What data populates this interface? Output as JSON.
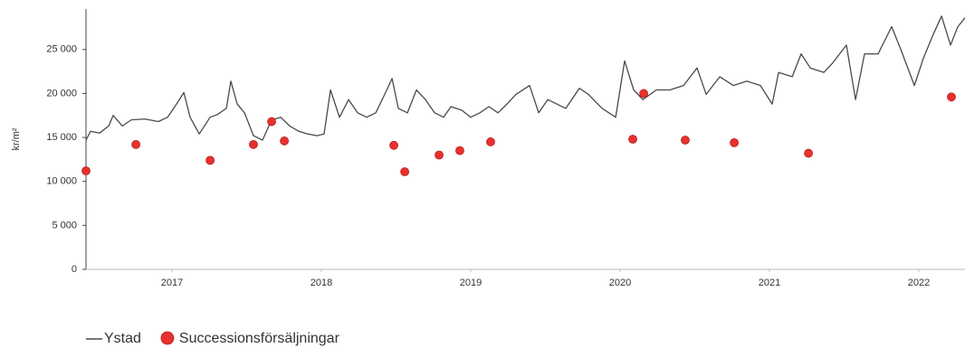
{
  "chart_data": {
    "type": "line",
    "ylabel": "kr/m²",
    "xlim": [
      2016.424,
      2022.309
    ],
    "xticks": [
      2017,
      2018,
      2019,
      2020,
      2021,
      2022
    ],
    "ylim": [
      0,
      29600
    ],
    "yticks": [
      0,
      {
        "value": 5000,
        "label": "5 000"
      },
      {
        "value": 10000,
        "label": "10 000"
      },
      {
        "value": 15000,
        "label": "15 000"
      },
      {
        "value": 20000,
        "label": "20 000"
      },
      {
        "value": 25000,
        "label": "25 000"
      }
    ],
    "grid": false,
    "series": [
      {
        "name": "Ystad",
        "type": "line",
        "color": "#4a4a4a",
        "x": [
          2016.424,
          2016.455,
          2016.515,
          2016.576,
          2016.606,
          2016.667,
          2016.727,
          2016.818,
          2016.909,
          2016.97,
          2017.03,
          2017.079,
          2017.121,
          2017.182,
          2017.255,
          2017.303,
          2017.364,
          2017.394,
          2017.436,
          2017.485,
          2017.545,
          2017.606,
          2017.667,
          2017.727,
          2017.788,
          2017.848,
          2017.909,
          2017.97,
          2018.018,
          2018.061,
          2018.121,
          2018.182,
          2018.242,
          2018.303,
          2018.364,
          2018.424,
          2018.473,
          2018.515,
          2018.576,
          2018.636,
          2018.697,
          2018.758,
          2018.818,
          2018.867,
          2018.939,
          2019.0,
          2019.061,
          2019.121,
          2019.182,
          2019.242,
          2019.303,
          2019.394,
          2019.455,
          2019.515,
          2019.576,
          2019.636,
          2019.727,
          2019.788,
          2019.879,
          2019.97,
          2020.03,
          2020.091,
          2020.152,
          2020.242,
          2020.333,
          2020.424,
          2020.515,
          2020.576,
          2020.667,
          2020.758,
          2020.848,
          2020.939,
          2021.018,
          2021.061,
          2021.152,
          2021.212,
          2021.273,
          2021.364,
          2021.424,
          2021.515,
          2021.576,
          2021.636,
          2021.727,
          2021.818,
          2021.879,
          2021.97,
          2022.03,
          2022.091,
          2022.152,
          2022.212,
          2022.261,
          2022.309
        ],
        "values": [
          14700,
          15700,
          15500,
          16300,
          17500,
          16300,
          17000,
          17100,
          16800,
          17300,
          18800,
          20100,
          17300,
          15400,
          17300,
          17600,
          18300,
          21400,
          18800,
          17800,
          15200,
          14700,
          17000,
          17300,
          16300,
          15700,
          15400,
          15200,
          15400,
          20400,
          17300,
          19300,
          17800,
          17300,
          17800,
          19900,
          21700,
          18300,
          17800,
          20400,
          19300,
          17800,
          17300,
          18500,
          18100,
          17300,
          17800,
          18500,
          17800,
          18800,
          19900,
          20900,
          17800,
          19300,
          18800,
          18300,
          20600,
          19900,
          18300,
          17300,
          23700,
          20400,
          19300,
          20400,
          20400,
          20900,
          22900,
          19900,
          21900,
          20900,
          21400,
          20900,
          18800,
          22400,
          21900,
          24500,
          22900,
          22400,
          23500,
          25500,
          19300,
          24500,
          24500,
          27600,
          25000,
          20900,
          24000,
          26500,
          28800,
          25500,
          27600,
          28600
        ]
      },
      {
        "name": "Successionsförsäljningar",
        "type": "scatter",
        "color": "#e8312f",
        "x": [
          2016.424,
          2016.758,
          2017.255,
          2017.545,
          2017.667,
          2017.752,
          2018.485,
          2018.558,
          2018.788,
          2018.927,
          2019.133,
          2020.085,
          2020.158,
          2020.436,
          2020.764,
          2021.261,
          2022.218
        ],
        "values": [
          11200,
          14200,
          12400,
          14200,
          16800,
          14600,
          14100,
          11100,
          13000,
          13500,
          14500,
          14800,
          20000,
          14700,
          14400,
          13200,
          19600
        ]
      }
    ]
  }
}
